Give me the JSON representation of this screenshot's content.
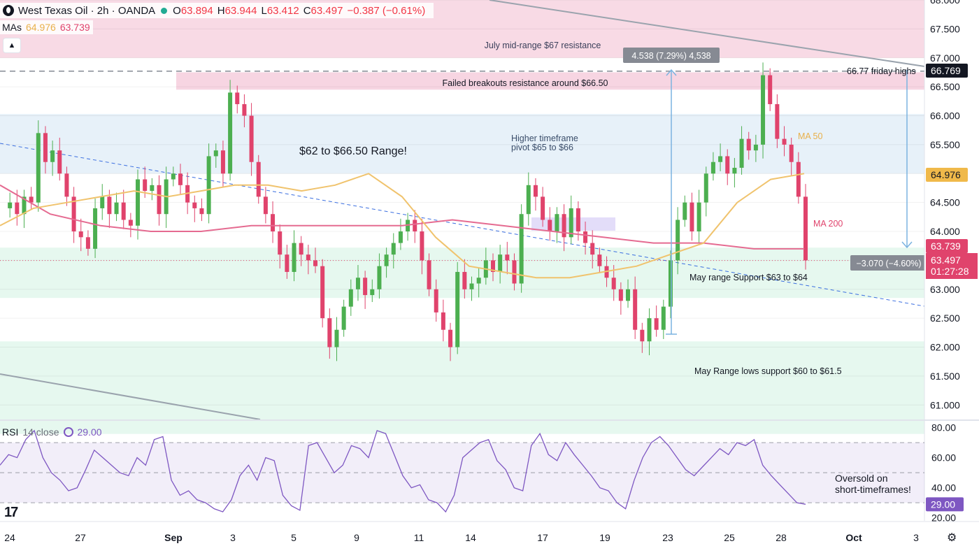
{
  "header": {
    "symbol": "West Texas Oil · 2h · OANDA",
    "open_label": "O",
    "open": "63.894",
    "high_label": "H",
    "high": "63.944",
    "low_label": "L",
    "low": "63.412",
    "close_label": "C",
    "close": "63.497",
    "change": "−0.387 (−0.61%)"
  },
  "mas": {
    "label": "MAs",
    "ma50_value": "64.976",
    "ma200_value": "63.739"
  },
  "rsi": {
    "label": "RSI",
    "params": "14 close",
    "value": "29.00"
  },
  "colors": {
    "up": "#4caf50",
    "down": "#e0436c",
    "ma50": "#f0c36d",
    "ma200": "#e56b91",
    "rsi": "#7e57c2",
    "resistance_zone": "#f7d3e0",
    "pivot_zone": "#e3eef8",
    "support_zone": "#e2f7ec"
  },
  "annotations": {
    "july_resistance": "July mid-range $67 resistance",
    "failed_breakouts": "Failed breakouts resistance around $66.50",
    "higher_tf_pivot_1": "Higher timeframe",
    "higher_tf_pivot_2": "pivot $65 to $66",
    "range": "$62 to $66.50 Range!",
    "may_support": "May range Support $63 to $64",
    "may_lows": "May Range lows support $60 to $61.5",
    "friday_highs": "66.77 friday highs",
    "ma50": "MA 50",
    "ma200": "MA 200",
    "measure_up": "4.538 (7.29%) 4,538",
    "measure_down": "−3.070 (−4.60%)",
    "oversold_1": "Oversold on",
    "oversold_2": "short-timeframes!"
  },
  "price_scale": {
    "badges": [
      {
        "text": "66.769",
        "bg": "#131722",
        "color": "#ffffff",
        "value": 66.769
      },
      {
        "text": "64.976",
        "bg": "#f0b94a",
        "color": "#131722",
        "value": 64.976
      },
      {
        "text": "63.739",
        "bg": "#e0436c",
        "color": "#ffffff",
        "value": 63.739
      },
      {
        "text": "63.497",
        "bg": "#e0436c",
        "color": "#ffffff",
        "value": 63.497
      }
    ],
    "countdown": "01:27:28"
  },
  "rsi_badge": "29.00",
  "chart_data": {
    "type": "candlestick",
    "y_ticks": [
      "61.000",
      "61.500",
      "62.000",
      "62.500",
      "63.000",
      "63.500",
      "64.000",
      "64.500",
      "65.000",
      "65.500",
      "66.000",
      "66.500",
      "67.000",
      "67.500",
      "68.000"
    ],
    "ylim": [
      60.75,
      68.0
    ],
    "x_ticks": [
      "24",
      "27",
      "Sep",
      "3",
      "5",
      "9",
      "11",
      "14",
      "17",
      "19",
      "23",
      "25",
      "28",
      "Oct",
      "3"
    ],
    "rsi_ticks": [
      "20.00",
      "40.00",
      "60.00",
      "80.00"
    ],
    "rsi_ylim": [
      18,
      84
    ],
    "rsi_levels": [
      70,
      50,
      30
    ],
    "zones": [
      {
        "name": "July mid-range resistance",
        "from": 67.0,
        "to": 68.0
      },
      {
        "name": "Failed breakouts resistance",
        "from": 66.45,
        "to": 66.75
      },
      {
        "name": "Higher timeframe pivot",
        "from": 65.0,
        "to": 66.03
      },
      {
        "name": "May range support",
        "from": 62.85,
        "to": 63.72
      },
      {
        "name": "May range lows support",
        "from": 60.5,
        "to": 62.1
      }
    ],
    "friday_high": 66.77,
    "last_close": 63.497,
    "price_path": [
      64.4,
      64.5,
      64.3,
      64.6,
      64.5,
      65.7,
      65.2,
      65.4,
      65.0,
      64.6,
      64.0,
      63.9,
      63.7,
      64.4,
      64.6,
      64.3,
      64.5,
      64.2,
      64.1,
      64.9,
      64.7,
      64.8,
      64.3,
      64.9,
      65.0,
      64.8,
      64.5,
      64.4,
      64.3,
      65.3,
      65.4,
      65.0,
      66.4,
      66.2,
      66.0,
      65.2,
      64.6,
      64.3,
      64.0,
      63.6,
      63.3,
      63.8,
      63.6,
      63.5,
      63.4,
      62.5,
      62.0,
      62.3,
      62.7,
      63.0,
      63.2,
      62.9,
      63.0,
      63.4,
      63.6,
      63.8,
      64.0,
      64.2,
      64.0,
      63.5,
      63.0,
      62.6,
      62.3,
      62.0,
      63.3,
      63.0,
      63.1,
      63.2,
      63.5,
      63.3,
      63.6,
      63.5,
      63.1,
      64.3,
      64.8,
      64.6,
      64.2,
      64.0,
      64.3,
      63.9,
      64.4,
      64.0,
      63.8,
      63.6,
      63.4,
      63.2,
      63.0,
      62.8,
      63.0,
      62.3,
      62.1,
      62.5,
      62.3,
      62.7,
      63.5,
      64.2,
      64.5,
      64.0,
      64.5,
      65.0,
      65.2,
      65.3,
      65.0,
      65.1,
      65.6,
      65.4,
      65.5,
      66.7,
      66.2,
      65.6,
      65.5,
      65.2,
      64.6,
      63.5
    ],
    "ma50_path": [
      64.1,
      64.4,
      64.5,
      64.6,
      64.7,
      64.6,
      64.7,
      64.8,
      64.8,
      64.7,
      64.8,
      65.0,
      64.6,
      63.9,
      63.4,
      63.3,
      63.2,
      63.2,
      63.3,
      63.4,
      63.6,
      63.8,
      64.5,
      64.9,
      65.0
    ],
    "ma200_path": [
      64.8,
      64.3,
      64.1,
      64.0,
      64.0,
      64.1,
      64.1,
      64.1,
      64.1,
      64.2,
      64.1,
      64.0,
      63.9,
      63.8,
      63.8,
      63.7,
      63.7
    ],
    "rsi_path": [
      55,
      62,
      60,
      72,
      78,
      60,
      50,
      45,
      38,
      40,
      52,
      65,
      60,
      55,
      50,
      48,
      60,
      55,
      72,
      74,
      45,
      35,
      38,
      32,
      30,
      26,
      24,
      32,
      48,
      55,
      45,
      60,
      58,
      35,
      28,
      25,
      68,
      70,
      60,
      50,
      55,
      68,
      66,
      60,
      78,
      76,
      62,
      48,
      40,
      42,
      32,
      30,
      24,
      35,
      60,
      65,
      70,
      72,
      58,
      52,
      40,
      38,
      68,
      76,
      62,
      58,
      70,
      62,
      55,
      48,
      40,
      38,
      30,
      26,
      45,
      60,
      70,
      74,
      68,
      60,
      52,
      48,
      54,
      60,
      66,
      62,
      70,
      68,
      72,
      55,
      48,
      42,
      36,
      30,
      29
    ]
  }
}
